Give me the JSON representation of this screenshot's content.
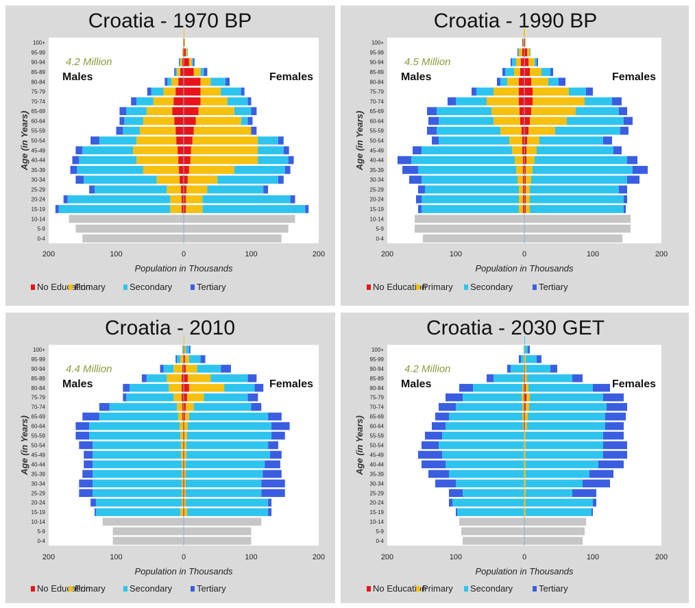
{
  "legend": {
    "no_education": {
      "label": "No Education",
      "color": "#e8141b"
    },
    "primary": {
      "label": "Primary",
      "color": "#f5c00f"
    },
    "secondary": {
      "label": "Secondary",
      "color": "#2ec4ee"
    },
    "tertiary": {
      "label": "Tertiary",
      "color": "#3b5ee0"
    }
  },
  "children_color": "#c6c6c6",
  "axis": {
    "age_groups": [
      "0-4",
      "5-9",
      "10-14",
      "15-19",
      "20-24",
      "25-29",
      "30-34",
      "35-39",
      "40-44",
      "45-49",
      "50-54",
      "55-59",
      "60-64",
      "65-69",
      "70-74",
      "75-79",
      "80-84",
      "85-89",
      "90-94",
      "95-99",
      "100+"
    ],
    "x_ticks": [
      "200",
      "100",
      "0",
      "100",
      "200"
    ],
    "x_label": "Population in Thousands",
    "y_label": "Age (in Years)",
    "males_label": "Males",
    "females_label": "Females"
  },
  "chart_data": [
    {
      "type": "bar",
      "title": "Croatia - 1970  BP",
      "population_label": "4.2 Million",
      "xlim": [
        -200,
        200
      ],
      "children": {
        "males": [
          150,
          160,
          170
        ],
        "females": [
          145,
          155,
          165
        ]
      },
      "series_order": "age groups 15-19 to 100+, cumulative [no_education, primary, secondary, tertiary] in thousands",
      "males": [
        [
          3,
          20,
          185,
          190
        ],
        [
          3,
          20,
          172,
          178
        ],
        [
          4,
          25,
          132,
          140
        ],
        [
          6,
          40,
          148,
          160
        ],
        [
          7,
          60,
          158,
          168
        ],
        [
          8,
          70,
          155,
          165
        ],
        [
          9,
          75,
          150,
          160
        ],
        [
          11,
          70,
          125,
          138
        ],
        [
          12,
          65,
          90,
          100
        ],
        [
          14,
          60,
          88,
          95
        ],
        [
          17,
          55,
          85,
          95
        ],
        [
          15,
          45,
          70,
          78
        ],
        [
          12,
          30,
          48,
          54
        ],
        [
          8,
          18,
          24,
          28
        ],
        [
          5,
          10,
          12,
          14
        ],
        [
          2,
          5,
          6,
          7
        ],
        [
          1,
          2,
          2,
          2
        ],
        [
          0,
          1,
          1,
          1
        ],
        [
          0,
          0,
          0,
          0
        ]
      ],
      "females": [
        [
          3,
          28,
          180,
          185
        ],
        [
          3,
          28,
          158,
          165
        ],
        [
          4,
          35,
          118,
          125
        ],
        [
          6,
          50,
          140,
          148
        ],
        [
          8,
          75,
          150,
          158
        ],
        [
          10,
          110,
          155,
          163
        ],
        [
          11,
          110,
          148,
          156
        ],
        [
          13,
          110,
          140,
          148
        ],
        [
          15,
          100,
          100,
          108
        ],
        [
          18,
          85,
          95,
          102
        ],
        [
          22,
          75,
          100,
          108
        ],
        [
          25,
          65,
          95,
          100
        ],
        [
          25,
          55,
          85,
          90
        ],
        [
          25,
          40,
          62,
          68
        ],
        [
          15,
          25,
          30,
          35
        ],
        [
          8,
          12,
          14,
          16
        ],
        [
          3,
          5,
          6,
          6
        ],
        [
          1,
          2,
          2,
          2
        ],
        [
          0,
          1,
          1,
          1
        ]
      ]
    },
    {
      "type": "bar",
      "title": "Croatia - 1990  BP",
      "population_label": "4.5 Million",
      "xlim": [
        -200,
        200
      ],
      "children": {
        "males": [
          148,
          160,
          160
        ],
        "females": [
          143,
          155,
          155
        ]
      },
      "series_order": "age groups 15-19 to 100+, cumulative [no_education, primary, secondary, tertiary] in thousands",
      "males": [
        [
          2,
          8,
          150,
          155
        ],
        [
          2,
          8,
          150,
          158
        ],
        [
          2,
          8,
          145,
          155
        ],
        [
          2,
          10,
          150,
          168
        ],
        [
          2,
          12,
          155,
          178
        ],
        [
          2,
          14,
          165,
          185
        ],
        [
          3,
          18,
          150,
          163
        ],
        [
          3,
          22,
          125,
          135
        ],
        [
          4,
          35,
          128,
          142
        ],
        [
          6,
          45,
          125,
          140
        ],
        [
          7,
          48,
          128,
          142
        ],
        [
          8,
          55,
          100,
          112
        ],
        [
          8,
          45,
          70,
          77
        ],
        [
          8,
          25,
          35,
          40
        ],
        [
          6,
          15,
          28,
          32
        ],
        [
          5,
          12,
          18,
          20
        ],
        [
          3,
          8,
          9,
          10
        ],
        [
          1,
          2,
          2,
          3
        ],
        [
          0,
          1,
          1,
          1
        ]
      ],
      "females": [
        [
          2,
          8,
          145,
          148
        ],
        [
          2,
          8,
          145,
          150
        ],
        [
          2,
          8,
          138,
          150
        ],
        [
          2,
          10,
          150,
          168
        ],
        [
          2,
          12,
          158,
          180
        ],
        [
          3,
          15,
          150,
          165
        ],
        [
          3,
          18,
          130,
          142
        ],
        [
          4,
          22,
          115,
          128
        ],
        [
          6,
          45,
          140,
          152
        ],
        [
          8,
          62,
          145,
          158
        ],
        [
          10,
          75,
          138,
          150
        ],
        [
          12,
          88,
          128,
          142
        ],
        [
          12,
          65,
          90,
          100
        ],
        [
          10,
          35,
          50,
          60
        ],
        [
          8,
          25,
          38,
          42
        ],
        [
          6,
          15,
          18,
          20
        ],
        [
          4,
          8,
          9,
          9
        ],
        [
          1,
          2,
          2,
          2
        ],
        [
          0,
          1,
          1,
          1
        ]
      ]
    },
    {
      "type": "bar",
      "title": "Croatia - 2010",
      "population_label": "4.4 Million",
      "xlim": [
        -200,
        200
      ],
      "children": {
        "males": [
          105,
          105,
          120
        ],
        "females": [
          100,
          100,
          115
        ]
      },
      "series_order": "age groups 15-19 to 100+, cumulative [no_education, primary, secondary, tertiary] in thousands",
      "males": [
        [
          1,
          5,
          130,
          132
        ],
        [
          1,
          3,
          130,
          138
        ],
        [
          1,
          3,
          135,
          155
        ],
        [
          1,
          3,
          135,
          155
        ],
        [
          1,
          3,
          135,
          150
        ],
        [
          1,
          3,
          135,
          148
        ],
        [
          1,
          4,
          135,
          148
        ],
        [
          1,
          4,
          135,
          155
        ],
        [
          1,
          5,
          140,
          160
        ],
        [
          1,
          6,
          140,
          160
        ],
        [
          2,
          8,
          125,
          150
        ],
        [
          2,
          10,
          110,
          125
        ],
        [
          3,
          15,
          85,
          90
        ],
        [
          3,
          22,
          80,
          90
        ],
        [
          3,
          25,
          55,
          62
        ],
        [
          2,
          15,
          30,
          35
        ],
        [
          1,
          5,
          10,
          12
        ],
        [
          0,
          1,
          2,
          2
        ],
        [
          0,
          0,
          0,
          0
        ]
      ],
      "females": [
        [
          1,
          5,
          125,
          130
        ],
        [
          1,
          3,
          125,
          130
        ],
        [
          1,
          3,
          115,
          150
        ],
        [
          1,
          3,
          115,
          150
        ],
        [
          1,
          3,
          117,
          145
        ],
        [
          1,
          3,
          120,
          143
        ],
        [
          1,
          4,
          128,
          145
        ],
        [
          1,
          4,
          125,
          140
        ],
        [
          1,
          5,
          130,
          150
        ],
        [
          1,
          6,
          130,
          157
        ],
        [
          2,
          8,
          125,
          145
        ],
        [
          3,
          15,
          100,
          115
        ],
        [
          5,
          30,
          95,
          110
        ],
        [
          8,
          60,
          105,
          118
        ],
        [
          6,
          40,
          95,
          108
        ],
        [
          3,
          20,
          55,
          70
        ],
        [
          2,
          8,
          25,
          32
        ],
        [
          1,
          3,
          8,
          10
        ],
        [
          0,
          1,
          1,
          1
        ]
      ]
    },
    {
      "type": "bar",
      "title": "Croatia - 2030  GET",
      "population_label": "4.2 Million",
      "xlim": [
        -200,
        200
      ],
      "children": {
        "males": [
          90,
          92,
          95
        ],
        "females": [
          85,
          88,
          90
        ]
      },
      "series_order": "age groups 15-19 to 100+, cumulative [no_education, primary, secondary, tertiary] in thousands",
      "males": [
        [
          0,
          1,
          98,
          100
        ],
        [
          0,
          1,
          105,
          110
        ],
        [
          0,
          1,
          90,
          110
        ],
        [
          0,
          1,
          100,
          130
        ],
        [
          0,
          1,
          110,
          140
        ],
        [
          0,
          1,
          115,
          150
        ],
        [
          0,
          1,
          120,
          155
        ],
        [
          0,
          1,
          125,
          150
        ],
        [
          0,
          1,
          120,
          145
        ],
        [
          1,
          2,
          115,
          135
        ],
        [
          1,
          3,
          110,
          130
        ],
        [
          1,
          3,
          100,
          125
        ],
        [
          1,
          4,
          90,
          115
        ],
        [
          1,
          3,
          75,
          95
        ],
        [
          1,
          2,
          45,
          55
        ],
        [
          0,
          1,
          20,
          25
        ],
        [
          0,
          1,
          5,
          8
        ],
        [
          0,
          0,
          1,
          1
        ],
        [
          0,
          0,
          0,
          0
        ]
      ],
      "females": [
        [
          0,
          2,
          98,
          100
        ],
        [
          0,
          2,
          100,
          105
        ],
        [
          0,
          2,
          70,
          105
        ],
        [
          0,
          2,
          85,
          125
        ],
        [
          0,
          2,
          95,
          130
        ],
        [
          0,
          2,
          108,
          145
        ],
        [
          0,
          2,
          115,
          150
        ],
        [
          0,
          2,
          115,
          150
        ],
        [
          0,
          2,
          115,
          145
        ],
        [
          1,
          4,
          118,
          145
        ],
        [
          1,
          5,
          118,
          148
        ],
        [
          2,
          7,
          120,
          150
        ],
        [
          3,
          8,
          115,
          145
        ],
        [
          2,
          6,
          100,
          125
        ],
        [
          1,
          4,
          70,
          85
        ],
        [
          1,
          3,
          38,
          48
        ],
        [
          0,
          2,
          18,
          25
        ],
        [
          0,
          1,
          5,
          8
        ],
        [
          0,
          0,
          1,
          1
        ]
      ]
    }
  ]
}
